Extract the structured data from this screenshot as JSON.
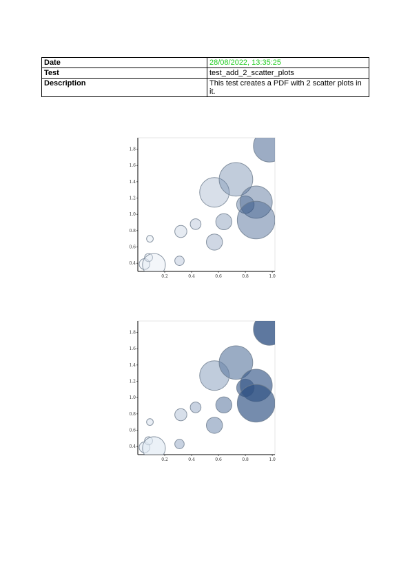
{
  "table": {
    "rows": [
      {
        "key": "Date",
        "value": "28/08/2022, 13:35:25",
        "value_color": "#22cc22"
      },
      {
        "key": "Test",
        "value": "test_add_2_scatter_plots"
      },
      {
        "key": "Description",
        "value": "This test creates a PDF with 2 scatter plots in it."
      }
    ]
  },
  "chart_data": [
    {
      "type": "scatter",
      "title": "",
      "xlabel": "",
      "ylabel": "",
      "xlim": [
        0.0,
        1.02
      ],
      "ylim": [
        0.3,
        1.94
      ],
      "x_ticks": [
        "0.2",
        "0.4",
        "0.6",
        "0.8",
        "1.0"
      ],
      "y_ticks": [
        "0.4",
        "0.6",
        "0.8",
        "1.0",
        "1.2",
        "1.4",
        "1.6",
        "1.8"
      ],
      "colormap": "Blues",
      "alpha": 0.4,
      "points": [
        {
          "x": 0.05,
          "y": 0.39,
          "size": 0.08,
          "color_value": 0.05
        },
        {
          "x": 0.08,
          "y": 0.47,
          "size": 0.06,
          "color_value": 0.05
        },
        {
          "x": 0.09,
          "y": 0.7,
          "size": 0.05,
          "color_value": 0.08
        },
        {
          "x": 0.12,
          "y": 0.38,
          "size": 0.17,
          "color_value": 0.06
        },
        {
          "x": 0.31,
          "y": 0.43,
          "size": 0.07,
          "color_value": 0.3
        },
        {
          "x": 0.32,
          "y": 0.79,
          "size": 0.09,
          "color_value": 0.2
        },
        {
          "x": 0.43,
          "y": 0.88,
          "size": 0.08,
          "color_value": 0.3
        },
        {
          "x": 0.57,
          "y": 0.66,
          "size": 0.12,
          "color_value": 0.45
        },
        {
          "x": 0.57,
          "y": 1.27,
          "size": 0.22,
          "color_value": 0.35
        },
        {
          "x": 0.64,
          "y": 0.91,
          "size": 0.12,
          "color_value": 0.55
        },
        {
          "x": 0.73,
          "y": 1.43,
          "size": 0.25,
          "color_value": 0.6
        },
        {
          "x": 0.8,
          "y": 1.12,
          "size": 0.13,
          "color_value": 0.75
        },
        {
          "x": 0.88,
          "y": 1.15,
          "size": 0.24,
          "color_value": 0.8
        },
        {
          "x": 0.88,
          "y": 0.93,
          "size": 0.28,
          "color_value": 0.85
        },
        {
          "x": 0.98,
          "y": 1.84,
          "size": 0.24,
          "color_value": 1.0
        }
      ]
    },
    {
      "type": "scatter",
      "title": "",
      "xlabel": "",
      "ylabel": "",
      "xlim": [
        0.0,
        1.02
      ],
      "ylim": [
        0.3,
        1.94
      ],
      "x_ticks": [
        "0.2",
        "0.4",
        "0.6",
        "0.8",
        "1.0"
      ],
      "y_ticks": [
        "0.4",
        "0.6",
        "0.8",
        "1.0",
        "1.2",
        "1.4",
        "1.6",
        "1.8"
      ],
      "colormap": "Blues",
      "alpha": 0.65,
      "points": [
        {
          "x": 0.05,
          "y": 0.39,
          "size": 0.08,
          "color_value": 0.05
        },
        {
          "x": 0.08,
          "y": 0.47,
          "size": 0.06,
          "color_value": 0.05
        },
        {
          "x": 0.09,
          "y": 0.7,
          "size": 0.05,
          "color_value": 0.08
        },
        {
          "x": 0.12,
          "y": 0.38,
          "size": 0.17,
          "color_value": 0.06
        },
        {
          "x": 0.31,
          "y": 0.43,
          "size": 0.07,
          "color_value": 0.3
        },
        {
          "x": 0.32,
          "y": 0.79,
          "size": 0.09,
          "color_value": 0.2
        },
        {
          "x": 0.43,
          "y": 0.88,
          "size": 0.08,
          "color_value": 0.3
        },
        {
          "x": 0.57,
          "y": 0.66,
          "size": 0.12,
          "color_value": 0.45
        },
        {
          "x": 0.57,
          "y": 1.27,
          "size": 0.22,
          "color_value": 0.35
        },
        {
          "x": 0.64,
          "y": 0.91,
          "size": 0.12,
          "color_value": 0.55
        },
        {
          "x": 0.73,
          "y": 1.43,
          "size": 0.25,
          "color_value": 0.6
        },
        {
          "x": 0.8,
          "y": 1.12,
          "size": 0.13,
          "color_value": 0.75
        },
        {
          "x": 0.88,
          "y": 1.15,
          "size": 0.24,
          "color_value": 0.8
        },
        {
          "x": 0.88,
          "y": 0.93,
          "size": 0.28,
          "color_value": 0.85
        },
        {
          "x": 0.98,
          "y": 1.84,
          "size": 0.24,
          "color_value": 1.0
        }
      ]
    }
  ]
}
